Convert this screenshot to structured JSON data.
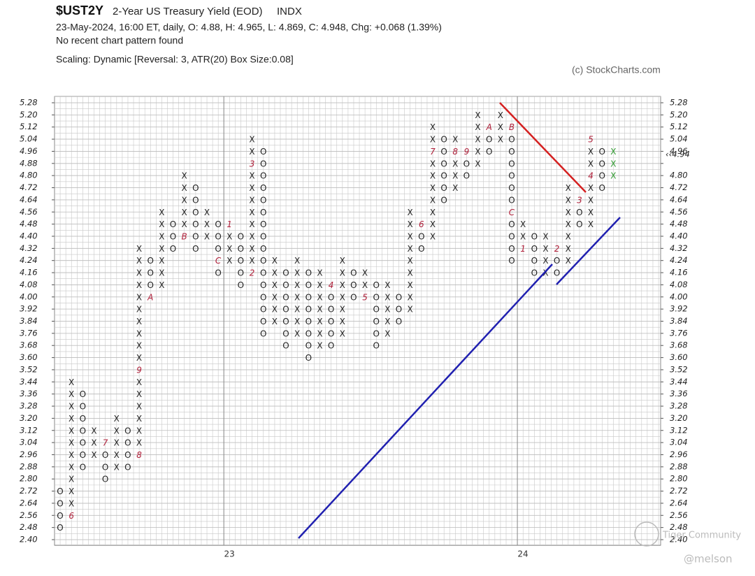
{
  "chart_data": {
    "type": "pnf",
    "symbol": "$UST2Y",
    "title": "2-Year US Treasury Yield (EOD)",
    "exchange": "INDX",
    "info": "23-May-2024, 16:00 ET, daily, O: 4.88, H: 4.965, L: 4.869, C: 4.948, Chg: +0.068 (1.39%)",
    "pattern": "No recent chart pattern found",
    "scaling": "Scaling: Dynamic [Reversal: 3, ATR(20) Box Size:0.08]",
    "credit": "(c) StockCharts.com",
    "watermark": "Tiger Community",
    "author": "@melson",
    "box_size": 0.08,
    "ylim": [
      2.4,
      5.28
    ],
    "yticks": [
      {
        "value": 2.4,
        "label": "2.40"
      },
      2.48,
      2.56,
      2.64,
      2.72,
      {
        "value": 2.8,
        "label": "2.80"
      },
      2.88,
      2.96,
      3.04,
      3.12,
      {
        "value": 3.2,
        "label": "3.20"
      },
      3.28,
      3.36,
      3.44,
      3.52,
      {
        "value": 3.6,
        "label": "3.60"
      },
      3.68,
      3.76,
      3.84,
      3.92,
      {
        "value": 4.0,
        "label": "4.00"
      },
      4.08,
      4.16,
      4.24,
      4.32,
      {
        "value": 4.4,
        "label": "4.40"
      },
      4.48,
      4.56,
      4.64,
      4.72,
      {
        "value": 4.8,
        "label": "4.80"
      },
      4.88,
      4.96,
      5.04,
      5.12,
      {
        "value": 5.2,
        "label": "5.20"
      },
      5.28
    ],
    "highlight_tick": 4.88,
    "last_price": {
      "value": 4.94,
      "label": "‹‹4.94"
    },
    "highlight_color": "#cc2222",
    "box_color": "#222222",
    "marker_color": "#b0203a",
    "current_color": "#2f9a2f",
    "grid": true,
    "x_labels": [
      {
        "label": "23",
        "column": 15
      },
      {
        "label": "24",
        "column": 41
      }
    ],
    "columns": [
      {
        "type": "O",
        "low": 2.48,
        "high": 2.72,
        "months": []
      },
      {
        "type": "X",
        "low": 2.56,
        "high": 3.44,
        "months": [
          {
            "label": "6",
            "value": 2.56
          }
        ]
      },
      {
        "type": "O",
        "low": 2.88,
        "high": 3.36,
        "months": []
      },
      {
        "type": "X",
        "low": 2.96,
        "high": 3.12,
        "months": []
      },
      {
        "type": "O",
        "low": 2.8,
        "high": 3.04,
        "months": [
          {
            "label": "7",
            "value": 3.04
          }
        ]
      },
      {
        "type": "X",
        "low": 2.88,
        "high": 3.2,
        "months": []
      },
      {
        "type": "O",
        "low": 2.88,
        "high": 3.12,
        "months": []
      },
      {
        "type": "X",
        "low": 2.96,
        "high": 4.32,
        "months": [
          {
            "label": "8",
            "value": 2.96
          },
          {
            "label": "9",
            "value": 3.52
          }
        ]
      },
      {
        "type": "O",
        "low": 4.0,
        "high": 4.24,
        "months": [
          {
            "label": "A",
            "value": 4.0
          }
        ]
      },
      {
        "type": "X",
        "low": 4.08,
        "high": 4.56,
        "months": []
      },
      {
        "type": "O",
        "low": 4.32,
        "high": 4.48,
        "months": []
      },
      {
        "type": "X",
        "low": 4.4,
        "high": 4.8,
        "months": [
          {
            "label": "B",
            "value": 4.4
          }
        ]
      },
      {
        "type": "O",
        "low": 4.32,
        "high": 4.72,
        "months": []
      },
      {
        "type": "X",
        "low": 4.4,
        "high": 4.56,
        "months": []
      },
      {
        "type": "O",
        "low": 4.16,
        "high": 4.48,
        "months": [
          {
            "label": "C",
            "value": 4.24
          }
        ]
      },
      {
        "type": "X",
        "low": 4.24,
        "high": 4.48,
        "months": [
          {
            "label": "1",
            "value": 4.48
          }
        ]
      },
      {
        "type": "O",
        "low": 4.08,
        "high": 4.4,
        "months": []
      },
      {
        "type": "X",
        "low": 4.16,
        "high": 5.04,
        "months": [
          {
            "label": "2",
            "value": 4.16
          },
          {
            "label": "3",
            "value": 4.88
          }
        ]
      },
      {
        "type": "O",
        "low": 3.76,
        "high": 4.96,
        "months": []
      },
      {
        "type": "X",
        "low": 3.84,
        "high": 4.24,
        "months": []
      },
      {
        "type": "O",
        "low": 3.68,
        "high": 4.16,
        "months": []
      },
      {
        "type": "X",
        "low": 3.76,
        "high": 4.24,
        "months": []
      },
      {
        "type": "O",
        "low": 3.6,
        "high": 4.16,
        "months": []
      },
      {
        "type": "X",
        "low": 3.68,
        "high": 4.16,
        "months": []
      },
      {
        "type": "O",
        "low": 3.68,
        "high": 4.08,
        "months": [
          {
            "label": "4",
            "value": 4.08
          }
        ]
      },
      {
        "type": "X",
        "low": 3.76,
        "high": 4.24,
        "months": []
      },
      {
        "type": "O",
        "low": 4.0,
        "high": 4.16,
        "months": []
      },
      {
        "type": "X",
        "low": 4.0,
        "high": 4.16,
        "months": [
          {
            "label": "5",
            "value": 4.0
          }
        ]
      },
      {
        "type": "O",
        "low": 3.68,
        "high": 4.08,
        "months": []
      },
      {
        "type": "X",
        "low": 3.76,
        "high": 4.08,
        "months": []
      },
      {
        "type": "O",
        "low": 3.84,
        "high": 4.0,
        "months": []
      },
      {
        "type": "X",
        "low": 3.92,
        "high": 4.56,
        "months": []
      },
      {
        "type": "O",
        "low": 4.32,
        "high": 4.48,
        "months": [
          {
            "label": "6",
            "value": 4.48
          }
        ]
      },
      {
        "type": "X",
        "low": 4.4,
        "high": 5.12,
        "months": [
          {
            "label": "7",
            "value": 4.96
          }
        ]
      },
      {
        "type": "O",
        "low": 4.64,
        "high": 5.04,
        "months": []
      },
      {
        "type": "X",
        "low": 4.72,
        "high": 5.04,
        "months": [
          {
            "label": "8",
            "value": 4.96
          }
        ]
      },
      {
        "type": "O",
        "low": 4.8,
        "high": 4.96,
        "months": [
          {
            "label": "9",
            "value": 4.96
          }
        ]
      },
      {
        "type": "X",
        "low": 4.88,
        "high": 5.2,
        "months": []
      },
      {
        "type": "O",
        "low": 4.96,
        "high": 5.12,
        "months": [
          {
            "label": "A",
            "value": 5.12
          }
        ]
      },
      {
        "type": "X",
        "low": 5.04,
        "high": 5.2,
        "months": []
      },
      {
        "type": "O",
        "low": 4.24,
        "high": 5.12,
        "months": [
          {
            "label": "B",
            "value": 5.12
          },
          {
            "label": "C",
            "value": 4.56
          }
        ]
      },
      {
        "type": "X",
        "low": 4.32,
        "high": 4.48,
        "months": [
          {
            "label": "1",
            "value": 4.32
          }
        ]
      },
      {
        "type": "O",
        "low": 4.16,
        "high": 4.4,
        "months": []
      },
      {
        "type": "X",
        "low": 4.16,
        "high": 4.4,
        "months": []
      },
      {
        "type": "O",
        "low": 4.16,
        "high": 4.32,
        "months": [
          {
            "label": "2",
            "value": 4.32
          }
        ]
      },
      {
        "type": "X",
        "low": 4.24,
        "high": 4.72,
        "months": []
      },
      {
        "type": "O",
        "low": 4.48,
        "high": 4.64,
        "months": [
          {
            "label": "3",
            "value": 4.64
          }
        ]
      },
      {
        "type": "X",
        "low": 4.48,
        "high": 5.04,
        "months": [
          {
            "label": "4",
            "value": 4.8
          },
          {
            "label": "5",
            "value": 5.04
          }
        ]
      },
      {
        "type": "O",
        "low": 4.72,
        "high": 4.96,
        "months": []
      },
      {
        "type": "X",
        "low": 4.8,
        "high": 4.96,
        "months": []
      }
    ]
  }
}
